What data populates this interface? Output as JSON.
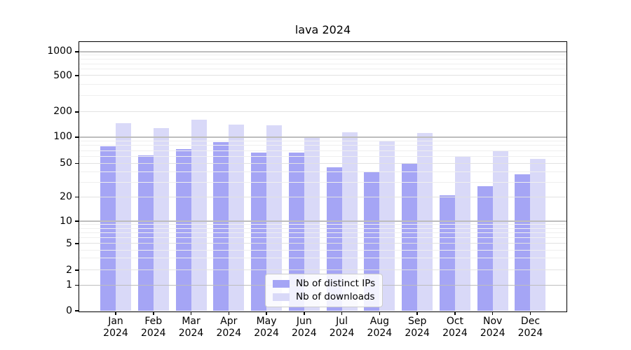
{
  "chart_data": {
    "type": "bar",
    "title": "lava 2024",
    "categories": [
      "Jan",
      "Feb",
      "Mar",
      "Apr",
      "May",
      "Jun",
      "Jul",
      "Aug",
      "Sep",
      "Oct",
      "Nov",
      "Dec"
    ],
    "category_year": "2024",
    "series": [
      {
        "name": "Nb of distinct IPs",
        "color": "#a5a5f5",
        "values": [
          78,
          62,
          73,
          88,
          67,
          67,
          45,
          40,
          51,
          21,
          27,
          37
        ]
      },
      {
        "name": "Nb of downloads",
        "color": "#d9d9f8",
        "values": [
          148,
          129,
          162,
          141,
          138,
          102,
          114,
          90,
          112,
          61,
          70,
          56
        ]
      }
    ],
    "xlabel": "",
    "ylabel": "",
    "y_ticks": [
      0,
      1,
      2,
      5,
      10,
      20,
      50,
      100,
      200,
      500,
      1000
    ],
    "y_scale": "symlog",
    "ylim": [
      0,
      1300
    ],
    "grid": true,
    "legend_position": "lower center"
  }
}
